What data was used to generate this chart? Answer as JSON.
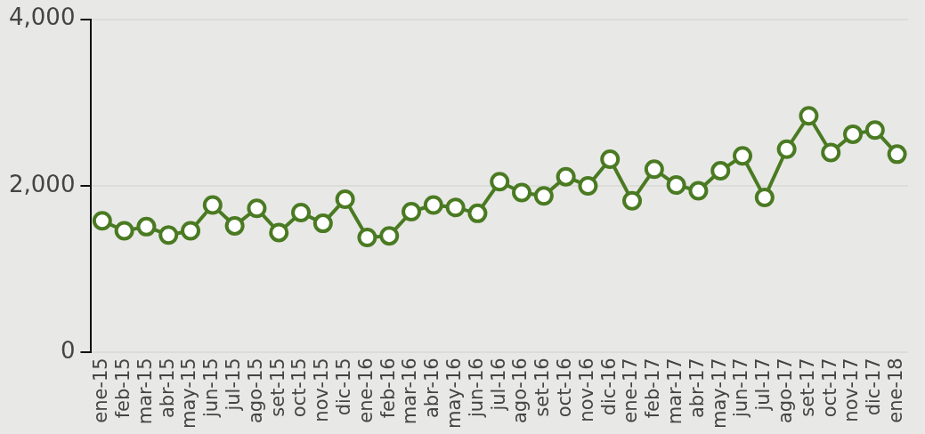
{
  "chart_data": {
    "type": "line",
    "categories": [
      "ene-15",
      "feb-15",
      "mar-15",
      "abr-15",
      "may-15",
      "jun-15",
      "jul-15",
      "ago-15",
      "set-15",
      "oct-15",
      "nov-15",
      "dic-15",
      "ene-16",
      "feb-16",
      "mar-16",
      "abr-16",
      "may-16",
      "jun-16",
      "jul-16",
      "ago-16",
      "set-16",
      "oct-16",
      "nov-16",
      "dic-16",
      "ene-17",
      "feb-17",
      "mar-17",
      "abr-17",
      "may-17",
      "jun-17",
      "jul-17",
      "ago-17",
      "set-17",
      "oct-17",
      "nov-17",
      "dic-17",
      "ene-18"
    ],
    "series": [
      {
        "color": "#4a7a22",
        "values": [
          1580,
          1460,
          1510,
          1410,
          1460,
          1770,
          1520,
          1730,
          1440,
          1680,
          1550,
          1840,
          1380,
          1400,
          1690,
          1770,
          1740,
          1670,
          2050,
          1920,
          1880,
          2110,
          2000,
          2320,
          1820,
          2200,
          2010,
          1940,
          2180,
          2360,
          1860,
          2440,
          2840,
          2400,
          2620,
          2670,
          2380
        ]
      }
    ],
    "ylim": [
      0,
      4000
    ],
    "yticks": [
      0,
      {
        "value": 2000,
        "label": "2,000"
      },
      {
        "value": 4000,
        "label": "4,000"
      }
    ],
    "grid": "y",
    "legend": false,
    "marker": "circle",
    "line_style": "solid"
  }
}
